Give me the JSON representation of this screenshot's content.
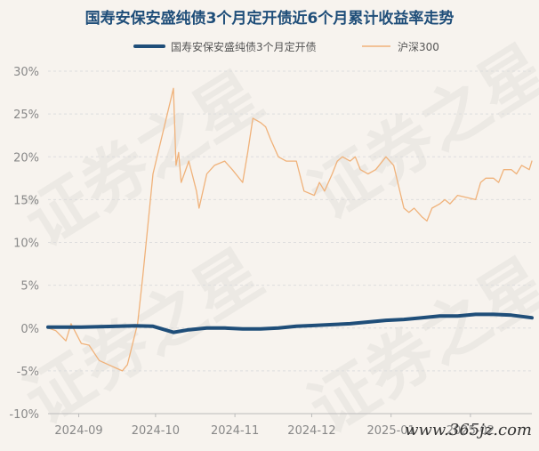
{
  "title": "国寿安保安盛纯债3个月定开债近6个月累计收益率走势",
  "watermark": "证券之星",
  "site_mark": "www.365jz.com",
  "colors": {
    "fund": "#1f4e79",
    "index": "#f0b27a",
    "grid": "#dddddd",
    "axis_text": "#888888"
  },
  "chart_data": {
    "type": "line",
    "title": "国寿安保安盛纯债3个月定开债近6个月累计收益率走势",
    "xlabel": "",
    "ylabel": "",
    "ylim": [
      -10,
      30
    ],
    "y_ticks": [
      "-10%",
      "-5%",
      "0%",
      "5%",
      "10%",
      "15%",
      "20%",
      "25%",
      "30%"
    ],
    "x_ticks": [
      "2024-09",
      "2024-10",
      "2024-11",
      "2024-12",
      "2025-01",
      "2025-02"
    ],
    "x_range": [
      "2024-08-20",
      "2025-02-25"
    ],
    "grid": true,
    "legend": "top-center",
    "series": [
      {
        "name": "国寿安保安盛纯债3个月定开债",
        "color": "#1f4e79",
        "points": [
          [
            "2024-08-20",
            0.1
          ],
          [
            "2024-08-26",
            0.1
          ],
          [
            "2024-09-02",
            0.1
          ],
          [
            "2024-09-09",
            0.15
          ],
          [
            "2024-09-16",
            0.2
          ],
          [
            "2024-09-23",
            0.25
          ],
          [
            "2024-09-30",
            0.2
          ],
          [
            "2024-10-08",
            -0.5
          ],
          [
            "2024-10-14",
            -0.2
          ],
          [
            "2024-10-21",
            0.0
          ],
          [
            "2024-10-28",
            0.0
          ],
          [
            "2024-11-04",
            -0.1
          ],
          [
            "2024-11-11",
            -0.1
          ],
          [
            "2024-11-18",
            0.0
          ],
          [
            "2024-11-25",
            0.2
          ],
          [
            "2024-12-02",
            0.3
          ],
          [
            "2024-12-09",
            0.4
          ],
          [
            "2024-12-16",
            0.5
          ],
          [
            "2024-12-23",
            0.7
          ],
          [
            "2024-12-30",
            0.9
          ],
          [
            "2025-01-06",
            1.0
          ],
          [
            "2025-01-13",
            1.2
          ],
          [
            "2025-01-20",
            1.4
          ],
          [
            "2025-01-27",
            1.4
          ],
          [
            "2025-02-03",
            1.6
          ],
          [
            "2025-02-10",
            1.6
          ],
          [
            "2025-02-17",
            1.5
          ],
          [
            "2025-02-25",
            1.2
          ]
        ]
      },
      {
        "name": "沪深300",
        "color": "#f0b27a",
        "points": [
          [
            "2024-08-20",
            0.0
          ],
          [
            "2024-08-23",
            -0.3
          ],
          [
            "2024-08-27",
            -1.5
          ],
          [
            "2024-08-29",
            0.5
          ],
          [
            "2024-09-02",
            -1.8
          ],
          [
            "2024-09-05",
            -2.0
          ],
          [
            "2024-09-09",
            -3.8
          ],
          [
            "2024-09-12",
            -4.2
          ],
          [
            "2024-09-18",
            -5.0
          ],
          [
            "2024-09-20",
            -4.3
          ],
          [
            "2024-09-24",
            0.5
          ],
          [
            "2024-09-26",
            6.0
          ],
          [
            "2024-09-27",
            9.0
          ],
          [
            "2024-09-30",
            18.0
          ],
          [
            "2024-10-08",
            28.0
          ],
          [
            "2024-10-09",
            19.0
          ],
          [
            "2024-10-10",
            20.5
          ],
          [
            "2024-10-11",
            17.0
          ],
          [
            "2024-10-14",
            19.5
          ],
          [
            "2024-10-17",
            16.0
          ],
          [
            "2024-10-18",
            14.0
          ],
          [
            "2024-10-21",
            18.0
          ],
          [
            "2024-10-24",
            19.0
          ],
          [
            "2024-10-28",
            19.5
          ],
          [
            "2024-10-31",
            18.5
          ],
          [
            "2024-11-04",
            17.0
          ],
          [
            "2024-11-06",
            20.5
          ],
          [
            "2024-11-08",
            24.5
          ],
          [
            "2024-11-11",
            24.0
          ],
          [
            "2024-11-13",
            23.5
          ],
          [
            "2024-11-15",
            22.0
          ],
          [
            "2024-11-18",
            20.0
          ],
          [
            "2024-11-21",
            19.5
          ],
          [
            "2024-11-25",
            19.5
          ],
          [
            "2024-11-28",
            16.0
          ],
          [
            "2024-12-02",
            15.5
          ],
          [
            "2024-12-04",
            17.0
          ],
          [
            "2024-12-06",
            16.0
          ],
          [
            "2024-12-09",
            18.0
          ],
          [
            "2024-12-11",
            19.5
          ],
          [
            "2024-12-13",
            20.0
          ],
          [
            "2024-12-16",
            19.5
          ],
          [
            "2024-12-18",
            20.0
          ],
          [
            "2024-12-20",
            18.5
          ],
          [
            "2024-12-23",
            18.0
          ],
          [
            "2024-12-26",
            18.5
          ],
          [
            "2024-12-30",
            20.0
          ],
          [
            "2025-01-02",
            19.0
          ],
          [
            "2025-01-06",
            14.0
          ],
          [
            "2025-01-08",
            13.5
          ],
          [
            "2025-01-10",
            14.0
          ],
          [
            "2025-01-13",
            13.0
          ],
          [
            "2025-01-15",
            12.5
          ],
          [
            "2025-01-17",
            14.0
          ],
          [
            "2025-01-20",
            14.5
          ],
          [
            "2025-01-22",
            15.0
          ],
          [
            "2025-01-24",
            14.5
          ],
          [
            "2025-01-27",
            15.5
          ],
          [
            "2025-02-03",
            15.0
          ],
          [
            "2025-02-05",
            17.0
          ],
          [
            "2025-02-07",
            17.5
          ],
          [
            "2025-02-10",
            17.5
          ],
          [
            "2025-02-12",
            17.0
          ],
          [
            "2025-02-14",
            18.5
          ],
          [
            "2025-02-17",
            18.5
          ],
          [
            "2025-02-19",
            18.0
          ],
          [
            "2025-02-21",
            19.0
          ],
          [
            "2025-02-24",
            18.5
          ],
          [
            "2025-02-25",
            19.5
          ]
        ]
      }
    ]
  }
}
